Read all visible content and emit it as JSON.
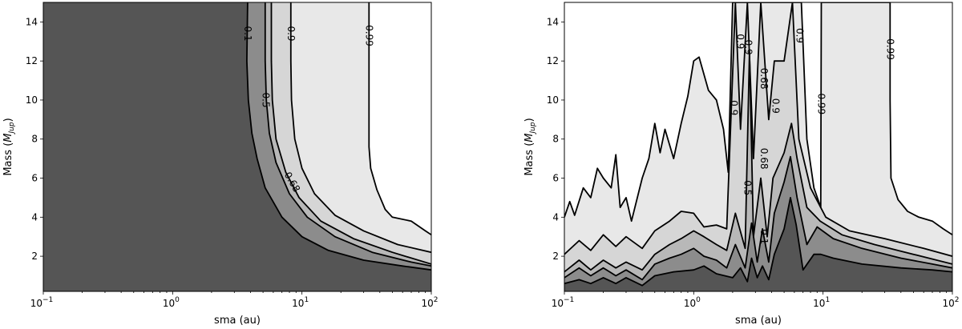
{
  "chart_data": [
    {
      "type": "contour",
      "xlabel": "sma (au)",
      "ylabel_main": "Mass (",
      "ylabel_italic": "M",
      "ylabel_sub": "Jup",
      "ylabel_close": ")",
      "xscale": "log",
      "xlim": [
        0.1,
        100
      ],
      "ylim": [
        0.2,
        15
      ],
      "xtick_values": [
        0.1,
        1,
        10,
        100
      ],
      "xtick_bases": [
        "10",
        "10",
        "10",
        "10"
      ],
      "xtick_exponents": [
        "−1",
        "0",
        "1",
        "2"
      ],
      "ytick_values": [
        2,
        4,
        6,
        8,
        10,
        12,
        14
      ],
      "ytick_labels": [
        "2",
        "4",
        "6",
        "8",
        "10",
        "12",
        "14"
      ],
      "fill_colors": [
        "#555555",
        "#8c8c8c",
        "#b8b8b8",
        "#d6d6d6",
        "#e8e8e8",
        "#ffffff"
      ],
      "contours": [
        {
          "level": "0.1",
          "points": [
            [
              3.8,
              15
            ],
            [
              3.75,
              12
            ],
            [
              3.85,
              10
            ],
            [
              4.1,
              8.3
            ],
            [
              4.5,
              7.0
            ],
            [
              5.2,
              5.5
            ],
            [
              7,
              4.0
            ],
            [
              10,
              3.0
            ],
            [
              16,
              2.3
            ],
            [
              30,
              1.8
            ],
            [
              60,
              1.5
            ],
            [
              100,
              1.3
            ]
          ]
        },
        {
          "level": "0.5",
          "points": [
            [
              5.2,
              15
            ],
            [
              5.2,
              12
            ],
            [
              5.3,
              10
            ],
            [
              5.6,
              8.3
            ],
            [
              6.3,
              6.8
            ],
            [
              8,
              5.2
            ],
            [
              11,
              4.0
            ],
            [
              18,
              3.0
            ],
            [
              35,
              2.2
            ],
            [
              70,
              1.7
            ],
            [
              100,
              1.5
            ]
          ]
        },
        {
          "level": "0.68",
          "points": [
            [
              5.8,
              15
            ],
            [
              5.8,
              12
            ],
            [
              5.9,
              10
            ],
            [
              6.3,
              8.0
            ],
            [
              7.5,
              6.3
            ],
            [
              9.5,
              5.0
            ],
            [
              14,
              3.8
            ],
            [
              25,
              2.9
            ],
            [
              50,
              2.2
            ],
            [
              100,
              1.6
            ]
          ]
        },
        {
          "level": "0.9",
          "points": [
            [
              8.2,
              15
            ],
            [
              8.2,
              12
            ],
            [
              8.3,
              10
            ],
            [
              8.8,
              8.0
            ],
            [
              10,
              6.5
            ],
            [
              12.5,
              5.2
            ],
            [
              18,
              4.1
            ],
            [
              30,
              3.3
            ],
            [
              55,
              2.6
            ],
            [
              100,
              2.2
            ]
          ]
        },
        {
          "level": "0.99",
          "points": [
            [
              33,
              15
            ],
            [
              33,
              12
            ],
            [
              33,
              10
            ],
            [
              33,
              7.6
            ],
            [
              34,
              6.5
            ],
            [
              38,
              5.4
            ],
            [
              44,
              4.4
            ],
            [
              50,
              4.0
            ],
            [
              70,
              3.8
            ],
            [
              90,
              3.3
            ],
            [
              100,
              3.1
            ]
          ]
        }
      ],
      "labels": [
        {
          "text": "0.1",
          "x": 3.8,
          "y": 13.4,
          "rotation": 90
        },
        {
          "text": "0.5",
          "x": 5.25,
          "y": 10.0,
          "rotation": 90
        },
        {
          "text": "0.68",
          "x": 8.4,
          "y": 5.8,
          "rotation": 60
        },
        {
          "text": "0.9",
          "x": 8.2,
          "y": 13.4,
          "rotation": 90
        },
        {
          "text": "0.99",
          "x": 33,
          "y": 13.3,
          "rotation": 90
        }
      ]
    },
    {
      "type": "contour",
      "xlabel": "sma (au)",
      "ylabel_main": "Mass (",
      "ylabel_italic": "M",
      "ylabel_sub": "Jup",
      "ylabel_close": ")",
      "xscale": "log",
      "xlim": [
        0.1,
        100
      ],
      "ylim": [
        0.2,
        15
      ],
      "xtick_values": [
        0.1,
        1,
        10,
        100
      ],
      "xtick_bases": [
        "10",
        "10",
        "10",
        "10"
      ],
      "xtick_exponents": [
        "−1",
        "0",
        "1",
        "2"
      ],
      "ytick_values": [
        2,
        4,
        6,
        8,
        10,
        12,
        14
      ],
      "ytick_labels": [
        "2",
        "4",
        "6",
        "8",
        "10",
        "12",
        "14"
      ],
      "fill_colors": [
        "#555555",
        "#8c8c8c",
        "#b8b8b8",
        "#d6d6d6",
        "#e8e8e8",
        "#ffffff"
      ],
      "contours": [
        {
          "level": "0.1",
          "points": [
            [
              0.1,
              0.6
            ],
            [
              0.13,
              0.8
            ],
            [
              0.16,
              0.6
            ],
            [
              0.2,
              0.9
            ],
            [
              0.25,
              0.6
            ],
            [
              0.3,
              0.9
            ],
            [
              0.4,
              0.5
            ],
            [
              0.5,
              1.0
            ],
            [
              0.7,
              1.2
            ],
            [
              1.0,
              1.3
            ],
            [
              1.2,
              1.5
            ],
            [
              1.5,
              1.1
            ],
            [
              2.0,
              0.9
            ],
            [
              2.3,
              1.4
            ],
            [
              2.6,
              0.7
            ],
            [
              2.8,
              1.9
            ],
            [
              3.1,
              0.9
            ],
            [
              3.4,
              1.5
            ],
            [
              3.8,
              0.8
            ],
            [
              4.2,
              2.1
            ],
            [
              5.0,
              3.4
            ],
            [
              5.6,
              5.0
            ],
            [
              6.2,
              3.6
            ],
            [
              7.0,
              1.3
            ],
            [
              8.5,
              2.1
            ],
            [
              9.6,
              2.1
            ],
            [
              12,
              1.9
            ],
            [
              20,
              1.6
            ],
            [
              40,
              1.4
            ],
            [
              70,
              1.3
            ],
            [
              100,
              1.2
            ]
          ]
        },
        {
          "level": "0.5",
          "points": [
            [
              0.1,
              0.9
            ],
            [
              0.13,
              1.4
            ],
            [
              0.16,
              1.0
            ],
            [
              0.2,
              1.4
            ],
            [
              0.25,
              1.0
            ],
            [
              0.3,
              1.3
            ],
            [
              0.4,
              0.8
            ],
            [
              0.5,
              1.6
            ],
            [
              0.65,
              1.9
            ],
            [
              0.8,
              2.1
            ],
            [
              1.0,
              2.4
            ],
            [
              1.2,
              2.0
            ],
            [
              1.5,
              1.8
            ],
            [
              1.8,
              1.4
            ],
            [
              2.1,
              2.6
            ],
            [
              2.5,
              1.4
            ],
            [
              2.8,
              3.7
            ],
            [
              3.1,
              1.7
            ],
            [
              3.4,
              3.4
            ],
            [
              3.8,
              1.7
            ],
            [
              4.2,
              4.2
            ],
            [
              5.0,
              5.8
            ],
            [
              5.6,
              7.1
            ],
            [
              6.3,
              5.0
            ],
            [
              7.5,
              2.6
            ],
            [
              9.0,
              3.5
            ],
            [
              12,
              2.9
            ],
            [
              20,
              2.4
            ],
            [
              40,
              1.9
            ],
            [
              70,
              1.6
            ],
            [
              100,
              1.4
            ]
          ]
        },
        {
          "level": "0.68",
          "points": [
            [
              0.1,
              1.2
            ],
            [
              0.13,
              1.8
            ],
            [
              0.16,
              1.3
            ],
            [
              0.2,
              1.8
            ],
            [
              0.25,
              1.4
            ],
            [
              0.3,
              1.7
            ],
            [
              0.4,
              1.3
            ],
            [
              0.5,
              2.1
            ],
            [
              0.65,
              2.6
            ],
            [
              0.8,
              2.9
            ],
            [
              1.0,
              3.3
            ],
            [
              1.2,
              3.0
            ],
            [
              1.5,
              2.6
            ],
            [
              1.8,
              2.3
            ],
            [
              2.1,
              4.2
            ],
            [
              2.5,
              2.4
            ],
            [
              2.7,
              12.5
            ],
            [
              2.9,
              3.0
            ],
            [
              3.3,
              6.0
            ],
            [
              3.7,
              3.0
            ],
            [
              4.1,
              6.0
            ],
            [
              5.0,
              7.3
            ],
            [
              5.7,
              8.8
            ],
            [
              6.3,
              7.0
            ],
            [
              7.5,
              4.5
            ],
            [
              9.5,
              3.8
            ],
            [
              14,
              3.1
            ],
            [
              25,
              2.6
            ],
            [
              50,
              2.1
            ],
            [
              100,
              1.6
            ]
          ]
        },
        {
          "level": "0.9",
          "points": [
            [
              0.1,
              2.1
            ],
            [
              0.13,
              2.8
            ],
            [
              0.16,
              2.3
            ],
            [
              0.2,
              3.1
            ],
            [
              0.25,
              2.5
            ],
            [
              0.3,
              3.0
            ],
            [
              0.4,
              2.4
            ],
            [
              0.5,
              3.3
            ],
            [
              0.65,
              3.8
            ],
            [
              0.8,
              4.3
            ],
            [
              1.0,
              4.2
            ],
            [
              1.2,
              3.5
            ],
            [
              1.5,
              3.6
            ],
            [
              1.8,
              3.4
            ],
            [
              2.1,
              15
            ],
            [
              2.3,
              8.5
            ],
            [
              2.6,
              15
            ],
            [
              2.9,
              7.0
            ],
            [
              3.3,
              15
            ],
            [
              3.8,
              9.0
            ],
            [
              4.2,
              12.0
            ],
            [
              5.0,
              12.0
            ],
            [
              5.8,
              15
            ],
            [
              6.5,
              8.0
            ],
            [
              8.0,
              5.5
            ],
            [
              10.5,
              4.0
            ],
            [
              16,
              3.3
            ],
            [
              30,
              2.9
            ],
            [
              60,
              2.4
            ],
            [
              100,
              2.0
            ]
          ]
        },
        {
          "level": "0.99",
          "points": [
            [
              0.1,
              4.0
            ],
            [
              0.11,
              4.8
            ],
            [
              0.12,
              4.1
            ],
            [
              0.14,
              5.5
            ],
            [
              0.16,
              5.0
            ],
            [
              0.18,
              6.5
            ],
            [
              0.2,
              6.0
            ],
            [
              0.23,
              5.5
            ],
            [
              0.25,
              7.2
            ],
            [
              0.27,
              4.5
            ],
            [
              0.3,
              5.0
            ],
            [
              0.33,
              3.8
            ],
            [
              0.4,
              6.0
            ],
            [
              0.45,
              7.0
            ],
            [
              0.5,
              8.8
            ],
            [
              0.55,
              7.3
            ],
            [
              0.6,
              8.5
            ],
            [
              0.7,
              7.0
            ],
            [
              0.8,
              8.8
            ],
            [
              0.9,
              10.2
            ],
            [
              1.0,
              12.0
            ],
            [
              1.1,
              12.2
            ],
            [
              1.3,
              10.5
            ],
            [
              1.5,
              10.0
            ],
            [
              1.7,
              8.5
            ],
            [
              1.85,
              6.3
            ],
            [
              2.0,
              15
            ],
            [
              2.4,
              15
            ],
            [
              2.7,
              15
            ],
            [
              3.0,
              15
            ],
            [
              3.5,
              15
            ],
            [
              4.0,
              15
            ],
            [
              5.0,
              15
            ],
            [
              6.0,
              15
            ],
            [
              6.8,
              15
            ],
            [
              7.5,
              8.0
            ],
            [
              8.5,
              5.5
            ],
            [
              9.6,
              4.5
            ],
            [
              9.7,
              15
            ],
            [
              33,
              15
            ],
            [
              33,
              10
            ],
            [
              33.5,
              6.0
            ],
            [
              38,
              4.9
            ],
            [
              45,
              4.3
            ],
            [
              55,
              4.0
            ],
            [
              70,
              3.8
            ],
            [
              85,
              3.4
            ],
            [
              100,
              3.1
            ]
          ]
        }
      ],
      "labels": [
        {
          "text": "0.9",
          "x": 2.05,
          "y": 9.6,
          "rotation": 90
        },
        {
          "text": "0.9",
          "x": 2.3,
          "y": 13.0,
          "rotation": 90
        },
        {
          "text": "0.9",
          "x": 2.65,
          "y": 12.7,
          "rotation": 90
        },
        {
          "text": "0.68",
          "x": 3.5,
          "y": 11.1,
          "rotation": 90
        },
        {
          "text": "0.9",
          "x": 4.3,
          "y": 9.7,
          "rotation": 90
        },
        {
          "text": "0.9",
          "x": 6.6,
          "y": 13.3,
          "rotation": 90
        },
        {
          "text": "0.99",
          "x": 9.7,
          "y": 9.8,
          "rotation": 90
        },
        {
          "text": "0.99",
          "x": 33,
          "y": 12.6,
          "rotation": 90
        },
        {
          "text": "0.68",
          "x": 3.5,
          "y": 7.0,
          "rotation": 90
        },
        {
          "text": "0.5",
          "x": 2.6,
          "y": 5.5,
          "rotation": 90
        },
        {
          "text": "0.1",
          "x": 3.5,
          "y": 3.0,
          "rotation": 90
        }
      ]
    }
  ]
}
